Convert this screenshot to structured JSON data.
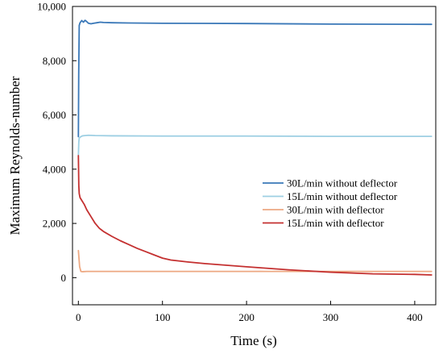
{
  "chart_data": {
    "type": "line",
    "title": "",
    "xlabel": "Time (s)",
    "ylabel": "Maximum Reynolds-number",
    "xlim": [
      -7,
      425
    ],
    "ylim": [
      -1000,
      10000
    ],
    "xticks": [
      0,
      100,
      200,
      300,
      400
    ],
    "yticks": [
      0,
      2000,
      4000,
      6000,
      8000,
      10000
    ],
    "xtick_labels": [
      "0",
      "100",
      "200",
      "300",
      "400"
    ],
    "ytick_labels": [
      "0",
      "2,000",
      "4,000",
      "6,000",
      "8,000",
      "10,000"
    ],
    "grid": false,
    "legend_position": "center-right",
    "series": [
      {
        "name": "30L/min without deflector",
        "color": "#3a78b8",
        "x": [
          0,
          0.4,
          1,
          2,
          4,
          6,
          8,
          10,
          12,
          15,
          18,
          22,
          26,
          30,
          40,
          60,
          100,
          200,
          300,
          420
        ],
        "y": [
          5200,
          7500,
          9300,
          9400,
          9480,
          9420,
          9490,
          9440,
          9380,
          9360,
          9380,
          9400,
          9420,
          9410,
          9400,
          9390,
          9380,
          9370,
          9350,
          9340
        ]
      },
      {
        "name": "15L/min without deflector",
        "color": "#9dcfe3",
        "x": [
          0,
          0.5,
          1,
          3,
          5,
          8,
          12,
          20,
          40,
          100,
          200,
          300,
          420
        ],
        "y": [
          4500,
          5000,
          5150,
          5200,
          5230,
          5240,
          5250,
          5240,
          5230,
          5220,
          5220,
          5210,
          5210
        ]
      },
      {
        "name": "30L/min with deflector",
        "color": "#eda882",
        "x": [
          0,
          0.5,
          1.5,
          3,
          5,
          10,
          20,
          50,
          100,
          200,
          300,
          420
        ],
        "y": [
          1000,
          800,
          400,
          230,
          220,
          230,
          230,
          230,
          230,
          230,
          230,
          230
        ]
      },
      {
        "name": "15L/min with deflector",
        "color": "#c43030",
        "x": [
          0,
          0.5,
          1,
          2,
          4,
          7,
          10,
          15,
          20,
          25,
          30,
          40,
          50,
          60,
          70,
          80,
          90,
          100,
          110,
          130,
          150,
          200,
          250,
          300,
          350,
          400,
          420
        ],
        "y": [
          4500,
          3400,
          3100,
          2950,
          2850,
          2700,
          2500,
          2250,
          2000,
          1820,
          1700,
          1520,
          1360,
          1220,
          1080,
          960,
          840,
          720,
          650,
          580,
          520,
          400,
          290,
          200,
          140,
          120,
          100
        ]
      }
    ]
  }
}
